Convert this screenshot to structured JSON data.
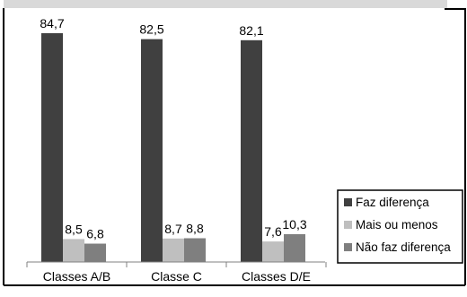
{
  "chart_data": {
    "type": "bar",
    "categories": [
      "Classes A/B",
      "Classe C",
      "Classes D/E"
    ],
    "series": [
      {
        "name": "Faz diferença",
        "values": [
          84.7,
          82.5,
          82.1
        ],
        "labels": [
          "84,7",
          "82,5",
          "82,1"
        ],
        "color": "#404040"
      },
      {
        "name": "Mais ou menos",
        "values": [
          8.5,
          8.7,
          7.6
        ],
        "labels": [
          "8,5",
          "8,7",
          "7,6"
        ],
        "color": "#bfbfbf"
      },
      {
        "name": "Não faz diferença",
        "values": [
          6.8,
          8.8,
          10.3
        ],
        "labels": [
          "6,8",
          "8,8",
          "10,3"
        ],
        "color": "#7f7f7f"
      }
    ],
    "legend_position": "right",
    "grid": false,
    "ylim": [
      0,
      90
    ]
  }
}
